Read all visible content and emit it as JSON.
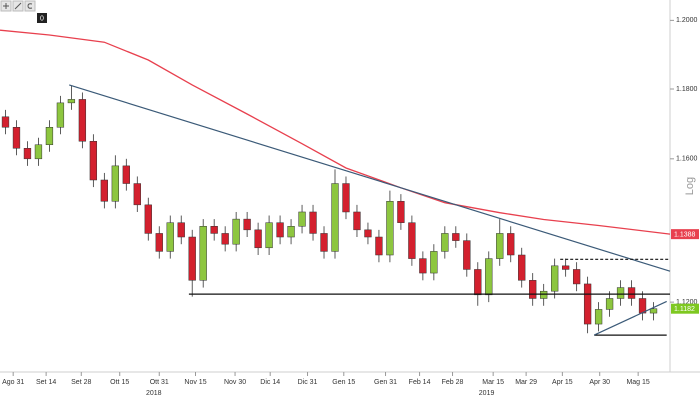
{
  "chart_data": {
    "type": "candlestick",
    "log_scale": true,
    "axis_label": "Log",
    "toolbar_label": "0",
    "ylim": [
      1.101,
      1.206
    ],
    "yticks": [
      {
        "value": 1.2,
        "label": "1.2000"
      },
      {
        "value": 1.18,
        "label": "1.1800"
      },
      {
        "value": 1.16,
        "label": "1.1600"
      },
      {
        "value": 1.12,
        "label": "1.1200"
      }
    ],
    "xlim": [
      -0.5,
      60.5
    ],
    "xticks": [
      {
        "value": 0.7,
        "label": "Ago 31"
      },
      {
        "value": 3.7,
        "label": "Set 14"
      },
      {
        "value": 6.9,
        "label": "Set 28"
      },
      {
        "value": 10.4,
        "label": "Ott 15"
      },
      {
        "value": 14.0,
        "label": "Ott 31"
      },
      {
        "value": 17.3,
        "label": "Nov 15"
      },
      {
        "value": 20.9,
        "label": "Nov 30"
      },
      {
        "value": 24.1,
        "label": "Dic 14"
      },
      {
        "value": 27.5,
        "label": "Dic 31"
      },
      {
        "value": 30.8,
        "label": "Gen 15"
      },
      {
        "value": 34.6,
        "label": "Gen 31"
      },
      {
        "value": 37.7,
        "label": "Feb 14"
      },
      {
        "value": 40.7,
        "label": "Feb 28"
      },
      {
        "value": 44.4,
        "label": "Mar 15"
      },
      {
        "value": 47.4,
        "label": "Mar 29"
      },
      {
        "value": 50.7,
        "label": "Apr 15"
      },
      {
        "value": 54.1,
        "label": "Apr 30"
      },
      {
        "value": 57.6,
        "label": "Mag 15"
      }
    ],
    "year_labels": [
      {
        "value": 13.5,
        "label": "2018"
      },
      {
        "value": 43.8,
        "label": "2019"
      }
    ],
    "up_color": "#8dc63f",
    "down_color": "#d3202e",
    "open": [
      1.172,
      1.169,
      1.163,
      1.16,
      1.164,
      1.169,
      1.176,
      1.177,
      1.165,
      1.154,
      1.148,
      1.158,
      1.153,
      1.147,
      1.139,
      1.134,
      1.142,
      1.138,
      1.126,
      1.141,
      1.139,
      1.136,
      1.143,
      1.14,
      1.135,
      1.142,
      1.138,
      1.141,
      1.145,
      1.139,
      1.134,
      1.153,
      1.145,
      1.14,
      1.138,
      1.133,
      1.148,
      1.142,
      1.132,
      1.128,
      1.134,
      1.139,
      1.137,
      1.129,
      1.122,
      1.132,
      1.139,
      1.133,
      1.126,
      1.121,
      1.123,
      1.13,
      1.129,
      1.125,
      1.114,
      1.118,
      1.121,
      1.124,
      1.121,
      1.117
    ],
    "high": [
      1.174,
      1.171,
      1.165,
      1.166,
      1.171,
      1.178,
      1.181,
      1.179,
      1.167,
      1.156,
      1.161,
      1.16,
      1.155,
      1.149,
      1.141,
      1.144,
      1.144,
      1.14,
      1.143,
      1.143,
      1.141,
      1.145,
      1.145,
      1.142,
      1.144,
      1.144,
      1.143,
      1.147,
      1.147,
      1.141,
      1.157,
      1.155,
      1.147,
      1.142,
      1.14,
      1.151,
      1.15,
      1.144,
      1.134,
      1.136,
      1.141,
      1.141,
      1.139,
      1.131,
      1.134,
      1.143,
      1.141,
      1.135,
      1.128,
      1.125,
      1.132,
      1.132,
      1.131,
      1.127,
      1.12,
      1.123,
      1.126,
      1.126,
      1.123,
      1.12
    ],
    "low": [
      1.167,
      1.161,
      1.158,
      1.158,
      1.162,
      1.167,
      1.174,
      1.163,
      1.152,
      1.146,
      1.146,
      1.151,
      1.145,
      1.137,
      1.132,
      1.132,
      1.136,
      1.1215,
      1.124,
      1.137,
      1.134,
      1.134,
      1.138,
      1.133,
      1.133,
      1.136,
      1.136,
      1.139,
      1.137,
      1.132,
      1.132,
      1.143,
      1.138,
      1.136,
      1.131,
      1.131,
      1.14,
      1.13,
      1.126,
      1.126,
      1.132,
      1.135,
      1.127,
      1.119,
      1.12,
      1.13,
      1.131,
      1.124,
      1.119,
      1.119,
      1.121,
      1.127,
      1.123,
      1.1115,
      1.112,
      1.116,
      1.119,
      1.119,
      1.115,
      1.115
    ],
    "close": [
      1.169,
      1.163,
      1.16,
      1.164,
      1.169,
      1.176,
      1.177,
      1.165,
      1.154,
      1.148,
      1.158,
      1.153,
      1.147,
      1.139,
      1.134,
      1.142,
      1.138,
      1.126,
      1.141,
      1.139,
      1.136,
      1.143,
      1.14,
      1.135,
      1.142,
      1.138,
      1.141,
      1.145,
      1.139,
      1.134,
      1.153,
      1.145,
      1.14,
      1.138,
      1.133,
      1.148,
      1.142,
      1.132,
      1.128,
      1.134,
      1.139,
      1.137,
      1.129,
      1.122,
      1.132,
      1.139,
      1.133,
      1.126,
      1.121,
      1.123,
      1.13,
      1.129,
      1.125,
      1.114,
      1.118,
      1.121,
      1.124,
      1.121,
      1.117,
      1.1182
    ],
    "moving_average": {
      "color": "#e8404e",
      "x": [
        -0.5,
        4,
        9,
        13,
        17,
        22,
        27,
        31,
        36,
        40,
        45,
        49,
        54,
        60.5
      ],
      "values": [
        1.1971,
        1.1957,
        1.1936,
        1.1884,
        1.1812,
        1.1728,
        1.1643,
        1.1574,
        1.1518,
        1.1476,
        1.1448,
        1.1429,
        1.1412,
        1.1388
      ]
    },
    "lines": [
      {
        "color": "#3b5a78",
        "dashed": false,
        "x": [
          5.8,
          60.5
        ],
        "values": [
          1.1812,
          1.1285
        ]
      },
      {
        "color": "#111111",
        "dashed": false,
        "x": [
          16.7,
          60.5
        ],
        "values": [
          1.1222,
          1.1222
        ]
      },
      {
        "color": "#111111",
        "dashed": true,
        "x": [
          50.5,
          60.5
        ],
        "values": [
          1.1318,
          1.1318
        ]
      },
      {
        "color": "#111111",
        "dashed": false,
        "x": [
          53.6,
          60.2
        ],
        "values": [
          1.111,
          1.111
        ]
      },
      {
        "color": "#3b5a78",
        "dashed": false,
        "x": [
          53.6,
          60.2
        ],
        "values": [
          1.111,
          1.1202
        ]
      }
    ],
    "price_tags": [
      {
        "value": 1.1388,
        "color": "#e8404e"
      },
      {
        "value": 1.1182,
        "color": "#7ec820"
      }
    ]
  }
}
